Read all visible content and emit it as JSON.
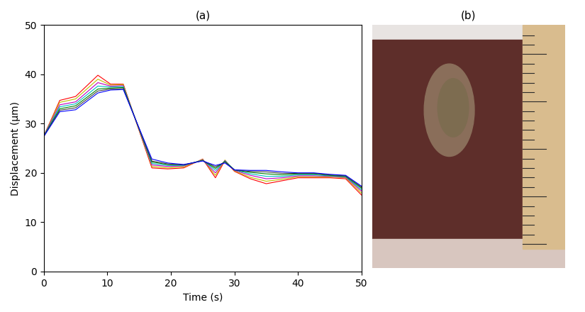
{
  "chart_data": [
    {
      "type": "line",
      "title": "(a)",
      "x_label": "Time (s)",
      "y_label": "Displacement (μm)",
      "x": [
        0,
        2.5,
        5,
        8.5,
        10.5,
        12.5,
        17,
        19.5,
        22,
        25,
        27,
        28.5,
        30,
        32.5,
        35,
        37.5,
        40,
        42.5,
        45,
        47.5,
        50
      ],
      "series": [
        {
          "color": "#ff0000",
          "values": [
            27.5,
            34.7,
            35.5,
            39.8,
            38.0,
            38.0,
            21.0,
            20.8,
            21.0,
            22.8,
            19.0,
            22.5,
            20.3,
            18.8,
            17.8,
            18.4,
            19.0,
            19.0,
            19.0,
            18.8,
            15.5
          ]
        },
        {
          "color": "#bfbf00",
          "values": [
            27.6,
            34.3,
            35.0,
            39.0,
            37.8,
            37.9,
            21.3,
            21.0,
            21.2,
            22.7,
            19.5,
            22.6,
            20.4,
            19.1,
            18.3,
            18.7,
            19.2,
            19.2,
            19.2,
            19.0,
            15.9
          ]
        },
        {
          "color": "#bf00bf",
          "values": [
            27.6,
            33.8,
            34.4,
            38.3,
            37.6,
            37.7,
            21.6,
            21.3,
            21.4,
            22.6,
            20.0,
            22.5,
            20.5,
            19.5,
            18.8,
            19.0,
            19.4,
            19.4,
            19.3,
            19.1,
            16.3
          ]
        },
        {
          "color": "#00bfbf",
          "values": [
            27.5,
            33.4,
            34.0,
            37.6,
            37.4,
            37.5,
            21.9,
            21.5,
            21.5,
            22.6,
            20.5,
            22.4,
            20.6,
            19.8,
            19.3,
            19.3,
            19.6,
            19.6,
            19.4,
            19.2,
            16.6
          ]
        },
        {
          "color": "#008000",
          "values": [
            27.5,
            33.0,
            33.6,
            37.0,
            37.2,
            37.3,
            22.2,
            21.7,
            21.6,
            22.5,
            20.9,
            22.3,
            20.6,
            20.1,
            19.8,
            19.6,
            19.8,
            19.8,
            19.5,
            19.3,
            16.9
          ]
        },
        {
          "color": "#404040",
          "values": [
            27.4,
            32.7,
            33.2,
            36.6,
            37.0,
            37.1,
            22.4,
            21.8,
            21.6,
            22.5,
            21.2,
            22.2,
            20.6,
            20.3,
            20.2,
            19.9,
            19.9,
            19.9,
            19.6,
            19.4,
            17.1
          ]
        },
        {
          "color": "#0000ff",
          "values": [
            27.4,
            32.4,
            32.8,
            36.2,
            36.8,
            36.9,
            22.8,
            22.0,
            21.7,
            22.4,
            21.5,
            22.0,
            20.6,
            20.5,
            20.5,
            20.2,
            20.0,
            20.0,
            19.7,
            19.5,
            17.3
          ]
        }
      ],
      "xlim": [
        0,
        50
      ],
      "xticks": [
        0,
        10,
        20,
        30,
        40,
        50
      ],
      "ylim": [
        0,
        50
      ],
      "yticks": [
        0,
        10,
        20,
        30,
        40,
        50
      ]
    },
    {
      "type": "image",
      "title": "(b)"
    }
  ]
}
